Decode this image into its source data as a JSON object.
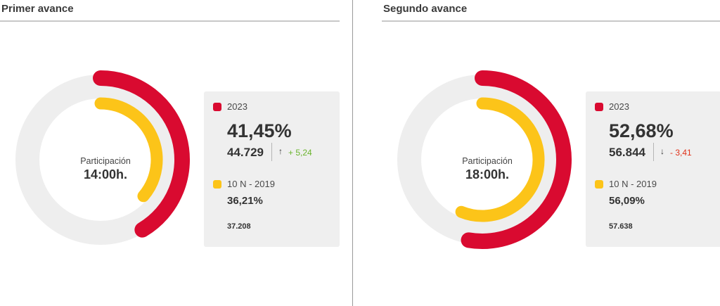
{
  "colors": {
    "series_2023": "#d90a30",
    "series_2019": "#fcc419",
    "track": "#eeeeee",
    "positive": "#6ab42d",
    "negative": "#e0331b"
  },
  "chart_data": [
    {
      "type": "donut",
      "title": "Primer avance",
      "center_label": "Participación",
      "center_time": "14:00h.",
      "series": [
        {
          "name": "2023",
          "percent": 41.45,
          "percent_label": "41,45%",
          "votes": "44.729",
          "change": "+ 5,24",
          "change_direction": "up"
        },
        {
          "name": "10 N - 2019",
          "percent": 36.21,
          "percent_label": "36,21%",
          "votes": "37.208"
        }
      ]
    },
    {
      "type": "donut",
      "title": "Segundo avance",
      "center_label": "Participación",
      "center_time": "18:00h.",
      "series": [
        {
          "name": "2023",
          "percent": 52.68,
          "percent_label": "52,68%",
          "votes": "56.844",
          "change": "- 3,41",
          "change_direction": "down"
        },
        {
          "name": "10 N - 2019",
          "percent": 56.09,
          "percent_label": "56,09%",
          "votes": "57.638"
        }
      ]
    }
  ]
}
